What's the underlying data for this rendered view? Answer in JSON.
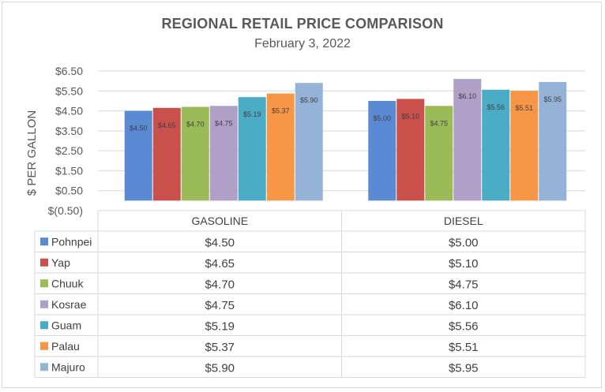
{
  "chart_data": {
    "type": "bar",
    "title": "REGIONAL RETAIL PRICE COMPARISON",
    "subtitle": "February 3, 2022",
    "ylabel": "$ PER GALLON",
    "xlabel": "",
    "ylim": [
      -0.5,
      6.5
    ],
    "yticks": [
      "$(0.50)",
      "$0.50",
      "$1.50",
      "$2.50",
      "$3.50",
      "$4.50",
      "$5.50",
      "$6.50"
    ],
    "ytick_values": [
      -0.5,
      0.5,
      1.5,
      2.5,
      3.5,
      4.5,
      5.5,
      6.5
    ],
    "categories": [
      "GASOLINE",
      "DIESEL"
    ],
    "grid": true,
    "legend": "data-table",
    "series": [
      {
        "name": "Pohnpei",
        "color": "#5b8ad5",
        "values": [
          4.5,
          5.0
        ],
        "labels": [
          "$4.50",
          "$5.00"
        ]
      },
      {
        "name": "Yap",
        "color": "#c9504b",
        "values": [
          4.65,
          5.1
        ],
        "labels": [
          "$4.65",
          "$5.10"
        ]
      },
      {
        "name": "Chuuk",
        "color": "#9bbb59",
        "values": [
          4.7,
          4.75
        ],
        "labels": [
          "$4.70",
          "$4.75"
        ]
      },
      {
        "name": "Kosrae",
        "color": "#b09fc7",
        "values": [
          4.75,
          6.1
        ],
        "labels": [
          "$4.75",
          "$6.10"
        ]
      },
      {
        "name": "Guam",
        "color": "#4bacc6",
        "values": [
          5.19,
          5.56
        ],
        "labels": [
          "$5.19",
          "$5.56"
        ]
      },
      {
        "name": "Palau",
        "color": "#f79646",
        "values": [
          5.37,
          5.51
        ],
        "labels": [
          "$5.37",
          "$5.51"
        ]
      },
      {
        "name": "Majuro",
        "color": "#95b3d7",
        "values": [
          5.9,
          5.95
        ],
        "labels": [
          "$5.90",
          "$5.95"
        ]
      }
    ]
  }
}
